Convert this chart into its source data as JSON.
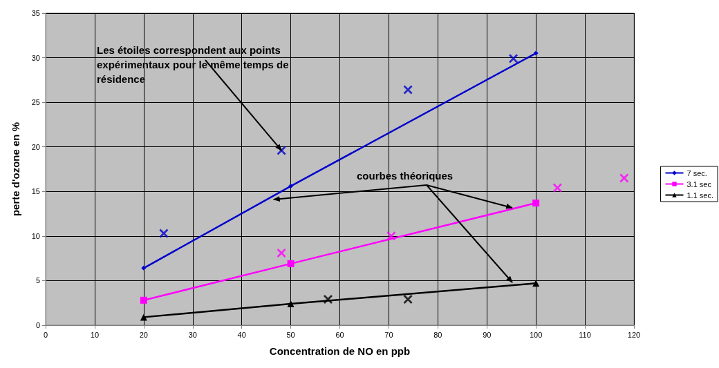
{
  "chart_data": {
    "type": "line",
    "xlabel": "Concentration de NO en ppb",
    "ylabel": "perte d'ozone en %",
    "xlim": [
      0,
      120
    ],
    "xticks": [
      0,
      10,
      20,
      30,
      40,
      50,
      60,
      70,
      80,
      90,
      100,
      110,
      120
    ],
    "ylim": [
      0,
      35
    ],
    "yticks": [
      0,
      5,
      10,
      15,
      20,
      25,
      30,
      35
    ],
    "grid": true,
    "legend": "right",
    "annotations": [
      {
        "text": "Les étoiles correspondent aux points expérimentaux pour le même temps de résidence",
        "x": 48.1,
        "y": 19.6
      },
      {
        "text": "courbes théoriques",
        "x": 46.5,
        "y": 14.1
      }
    ],
    "series": [
      {
        "name": "7 sec.",
        "marker": "diamond",
        "color": "#0000cc",
        "x": [
          20,
          50,
          100
        ],
        "values": [
          6.4,
          15.6,
          30.5
        ]
      },
      {
        "name": "3.1 sec",
        "marker": "square",
        "color": "#ff00ff",
        "x": [
          20,
          50,
          100
        ],
        "values": [
          2.8,
          6.9,
          13.7
        ]
      },
      {
        "name": "1.1 sec.",
        "marker": "triangle",
        "color": "#000000",
        "x": [
          20,
          50,
          100
        ],
        "values": [
          0.9,
          2.4,
          4.7
        ]
      },
      {
        "type": "scatter",
        "marker": "cross",
        "color": "#0000cc",
        "x": [
          24.1,
          48.1,
          73.9,
          95.4
        ],
        "values": [
          10.3,
          19.6,
          26.4,
          29.9
        ]
      },
      {
        "type": "scatter",
        "marker": "cross",
        "color": "#ff00ff",
        "x": [
          48.1,
          70.5,
          104.4,
          118
        ],
        "values": [
          8.1,
          10.0,
          15.4,
          16.5
        ]
      },
      {
        "type": "scatter",
        "marker": "cross",
        "color": "#000000",
        "x": [
          57.6,
          73.9
        ],
        "values": [
          2.9,
          2.9
        ]
      }
    ]
  }
}
